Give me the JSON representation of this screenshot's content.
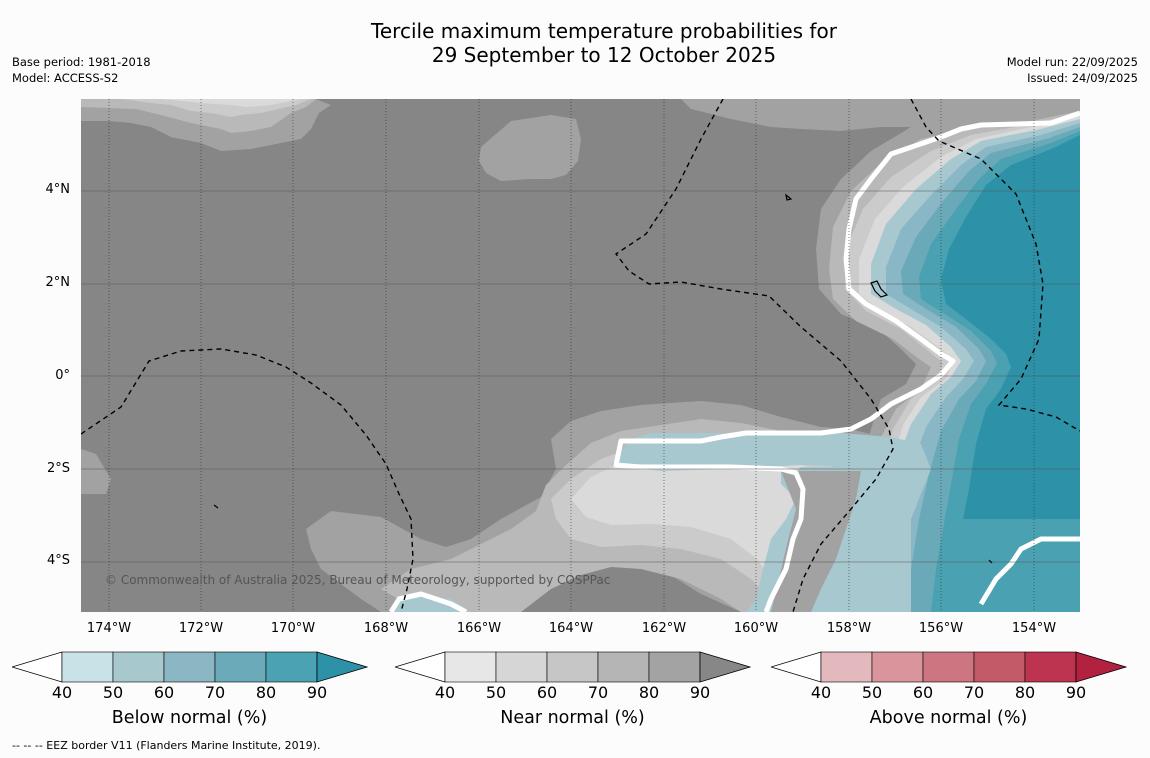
{
  "title": {
    "line1": "Tercile maximum temperature probabilities for",
    "line2": "29 September to 12 October 2025"
  },
  "meta_left": {
    "base_period": "Base period: 1981-2018",
    "model": "Model: ACCESS-S2"
  },
  "meta_right": {
    "model_run": "Model run: 22/09/2025",
    "issued": "Issued: 24/09/2025"
  },
  "map": {
    "lat_labels": [
      "4°N",
      "2°N",
      "0°",
      "2°S",
      "4°S"
    ],
    "lon_labels": [
      "174°W",
      "172°W",
      "170°W",
      "168°W",
      "166°W",
      "164°W",
      "162°W",
      "160°W",
      "158°W",
      "156°W",
      "154°W"
    ],
    "copyright": "© Commonwealth of Australia 2025, Bureau of Meteorology, supported by COSPPac",
    "colors": {
      "near_90": "#868686",
      "near_80": "#a2a2a2",
      "near_70": "#b9b9b9",
      "near_60": "#cbcbcb",
      "near_50": "#dadada",
      "near_40": "#e7e7e7",
      "below_50": "#a8c8cf",
      "below_60": "#8ab7c5",
      "below_70": "#6aaab8",
      "below_80": "#4aa1b2",
      "below_90": "#2d91a7"
    }
  },
  "colorbars": [
    {
      "name": "below-normal",
      "title": "Below normal (%)",
      "ticks": [
        "40",
        "50",
        "60",
        "70",
        "80",
        "90"
      ],
      "colors": [
        "#ffffff",
        "#c9e2e8",
        "#a7c8cd",
        "#8bb7c4",
        "#6aaab9",
        "#4aa2b3",
        "#2d91a7"
      ]
    },
    {
      "name": "near-normal",
      "title": "Near normal (%)",
      "ticks": [
        "40",
        "50",
        "60",
        "70",
        "80",
        "90"
      ],
      "colors": [
        "#ffffff",
        "#e7e7e7",
        "#d6d6d6",
        "#c6c6c6",
        "#b5b5b5",
        "#a3a3a3",
        "#878787"
      ]
    },
    {
      "name": "above-normal",
      "title": "Above normal (%)",
      "ticks": [
        "40",
        "50",
        "60",
        "70",
        "80",
        "90"
      ],
      "colors": [
        "#ffffff",
        "#e3b9be",
        "#d9949c",
        "#cd7580",
        "#c35a68",
        "#bc3450",
        "#b2213f"
      ]
    }
  ],
  "footer": "--  --  -- EEZ border V11 (Flanders Marine Institute, 2019)."
}
